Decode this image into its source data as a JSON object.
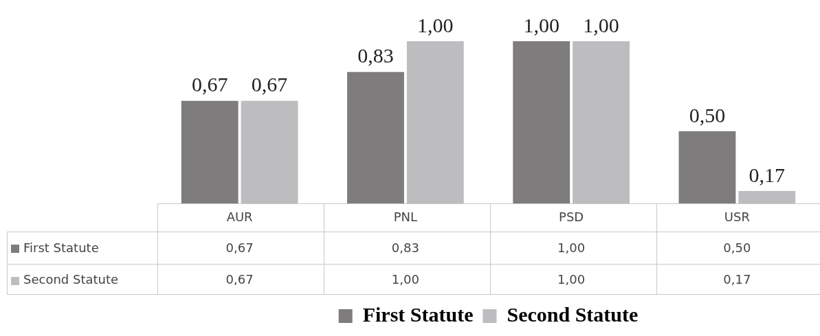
{
  "chart_data": {
    "type": "bar",
    "categories": [
      "AUR",
      "PNL",
      "PSD",
      "USR"
    ],
    "series": [
      {
        "name": "First Statute",
        "color": "#7f7c7d",
        "values": [
          0.67,
          0.83,
          1.0,
          0.5
        ],
        "value_labels": [
          "0,67",
          "0,83",
          "1,00",
          "0,50"
        ]
      },
      {
        "name": "Second Statute",
        "color": "#bdbcbe",
        "values": [
          0.67,
          1.0,
          1.0,
          0.17
        ],
        "value_labels": [
          "0,67",
          "1,00",
          "1,00",
          "0,17"
        ]
      }
    ],
    "tick_labels": "x",
    "grid": false,
    "legend": "bottom"
  }
}
